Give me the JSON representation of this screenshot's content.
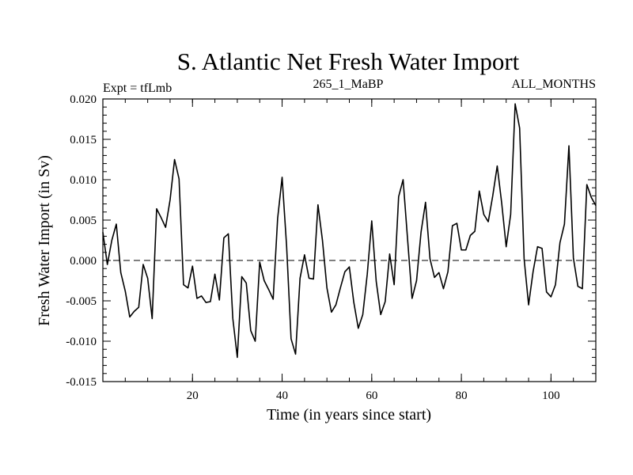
{
  "chart_data": {
    "type": "line",
    "title": "S. Atlantic Net Fresh Water Import",
    "subtitle_left": "Expt = tfLmb",
    "subtitle_center": "265_1_MaBP",
    "subtitle_right": "ALL_MONTHS",
    "xlabel": "Time (in years since start)",
    "ylabel": "Fresh Water Import (in Sv)",
    "xlim": [
      0,
      110
    ],
    "ylim": [
      -0.015,
      0.02
    ],
    "xticks": [
      20,
      40,
      60,
      80,
      100
    ],
    "xtick_labels": [
      "20",
      "40",
      "60",
      "80",
      "100"
    ],
    "yticks": [
      -0.015,
      -0.01,
      -0.005,
      0.0,
      0.005,
      0.01,
      0.015,
      0.02
    ],
    "ytick_labels": [
      "-0.015",
      "-0.010",
      "-0.005",
      "0.000",
      "0.005",
      "0.010",
      "0.015",
      "0.020"
    ],
    "reference_line": {
      "y": 0.0,
      "style": "dashed"
    },
    "grid": false,
    "series": [
      {
        "name": "Net Fresh Water Import",
        "x": [
          0,
          1,
          2,
          3,
          4,
          5,
          6,
          7,
          8,
          9,
          10,
          11,
          12,
          13,
          14,
          15,
          16,
          17,
          18,
          19,
          20,
          21,
          22,
          23,
          24,
          25,
          26,
          27,
          28,
          29,
          30,
          31,
          32,
          33,
          34,
          35,
          36,
          37,
          38,
          39,
          40,
          41,
          42,
          43,
          44,
          45,
          46,
          47,
          48,
          49,
          50,
          51,
          52,
          53,
          54,
          55,
          56,
          57,
          58,
          59,
          60,
          61,
          62,
          63,
          64,
          65,
          66,
          67,
          68,
          69,
          70,
          71,
          72,
          73,
          74,
          75,
          76,
          77,
          78,
          79,
          80,
          81,
          82,
          83,
          84,
          85,
          86,
          87,
          88,
          89,
          90,
          91,
          92,
          93,
          94,
          95,
          96,
          97,
          98,
          99,
          100,
          101,
          102,
          103,
          104,
          105,
          106,
          107,
          108,
          109,
          110
        ],
        "y": [
          0.0035,
          -0.0005,
          0.0025,
          0.0045,
          -0.0015,
          -0.0038,
          -0.007,
          -0.0063,
          -0.0058,
          -0.0005,
          -0.0022,
          -0.0072,
          0.0064,
          0.0053,
          0.0041,
          0.0075,
          0.0125,
          0.0101,
          -0.003,
          -0.0034,
          -0.0007,
          -0.0047,
          -0.0044,
          -0.0052,
          -0.0051,
          -0.0017,
          -0.0049,
          0.0028,
          0.0033,
          -0.0072,
          -0.012,
          -0.002,
          -0.0028,
          -0.0087,
          -0.01,
          -0.0002,
          -0.0025,
          -0.0036,
          -0.0048,
          0.0052,
          0.0103,
          0.0018,
          -0.0097,
          -0.0116,
          -0.0022,
          0.0007,
          -0.0022,
          -0.0023,
          0.0069,
          0.0025,
          -0.0034,
          -0.0064,
          -0.0055,
          -0.0034,
          -0.0014,
          -0.0008,
          -0.0052,
          -0.0084,
          -0.0067,
          -0.0017,
          0.0049,
          -0.0026,
          -0.0067,
          -0.0051,
          0.0008,
          -0.003,
          0.0079,
          0.01,
          0.0026,
          -0.0047,
          -0.0025,
          0.0035,
          0.0072,
          0.0002,
          -0.0021,
          -0.0015,
          -0.0035,
          -0.0014,
          0.0043,
          0.0046,
          0.0013,
          0.0013,
          0.0031,
          0.0036,
          0.0086,
          0.0057,
          0.0048,
          0.008,
          0.0117,
          0.0071,
          0.0017,
          0.0057,
          0.0194,
          0.0164,
          0.0002,
          -0.0055,
          -0.0014,
          0.0017,
          0.0015,
          -0.0039,
          -0.0045,
          -0.003,
          0.0022,
          0.0045,
          0.0142,
          0.0003,
          -0.0032,
          -0.0035,
          0.0094,
          0.0078,
          0.0068
        ]
      }
    ]
  }
}
